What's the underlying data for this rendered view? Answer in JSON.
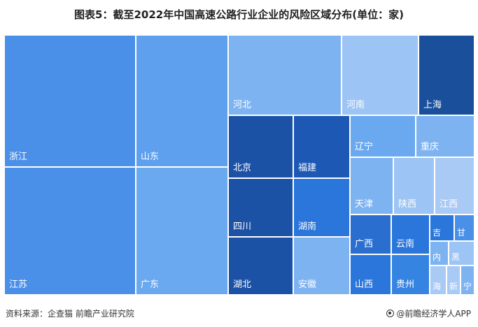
{
  "title": "图表5：截至2022年中国高速公路行业企业的风险区域分布(单位：家)",
  "source": "资料来源：企查猫 前瞻产业研究院",
  "brand": "@前瞻经济学人APP",
  "chart_data": {
    "type": "treemap",
    "title": "图表5：截至2022年中国高速公路行业企业的风险区域分布(单位：家)",
    "unit": "家",
    "items": [
      {
        "label": "浙江",
        "color": "#4a8fe8"
      },
      {
        "label": "江苏",
        "color": "#4a8fe8"
      },
      {
        "label": "山东",
        "color": "#5e9fee"
      },
      {
        "label": "广东",
        "color": "#6aa8f0"
      },
      {
        "label": "河北",
        "color": "#7eb3f2"
      },
      {
        "label": "河南",
        "color": "#9cc4f4"
      },
      {
        "label": "上海",
        "color": "#1a4f9c"
      },
      {
        "label": "北京",
        "color": "#1c52a6"
      },
      {
        "label": "福建",
        "color": "#1c58b4"
      },
      {
        "label": "四川",
        "color": "#1c52a6"
      },
      {
        "label": "湖南",
        "color": "#2a76da"
      },
      {
        "label": "湖北",
        "color": "#1c52a6"
      },
      {
        "label": "安徽",
        "color": "#7eb3f2"
      },
      {
        "label": "辽宁",
        "color": "#6aa8f0"
      },
      {
        "label": "重庆",
        "color": "#7eb3f2"
      },
      {
        "label": "天津",
        "color": "#7eb3f2"
      },
      {
        "label": "陕西",
        "color": "#9cc4f4"
      },
      {
        "label": "江西",
        "color": "#a9caf5"
      },
      {
        "label": "广西",
        "color": "#2a6fd0"
      },
      {
        "label": "云南",
        "color": "#2a76da"
      },
      {
        "label": "山西",
        "color": "#2a76da"
      },
      {
        "label": "贵州",
        "color": "#3584e2"
      },
      {
        "label": "吉",
        "color": "#2a76da"
      },
      {
        "label": "甘",
        "color": "#4a8fe8"
      },
      {
        "label": "内",
        "color": "#7eb3f2"
      },
      {
        "label": "黑",
        "color": "#9cc4f4"
      },
      {
        "label": "海",
        "color": "#a9caf5"
      },
      {
        "label": "新",
        "color": "#a9caf5"
      },
      {
        "label": "宁",
        "color": "#7eb3f2"
      }
    ]
  }
}
